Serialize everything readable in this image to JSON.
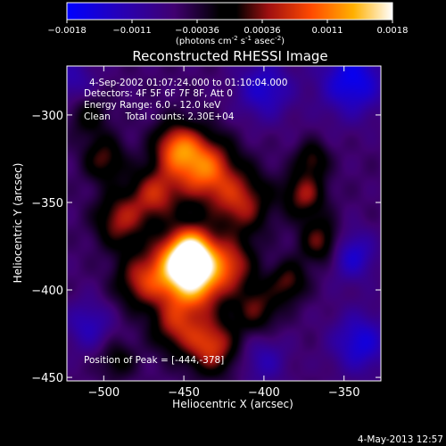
{
  "colorbar": {
    "ticks": [
      "-0.0018",
      "-0.0011",
      "-0.00036",
      "0.00036",
      "0.0011",
      "0.0018"
    ],
    "units_pre": "(photons cm",
    "units_sup1": "-2",
    "units_mid1": " s",
    "units_sup2": "-1",
    "units_mid2": " asec",
    "units_sup3": "-2",
    "units_post": ")"
  },
  "info": {
    "line1": "4-Sep-2002 01:07:24.000 to 01:10:04.000",
    "line2": "Detectors: 4F 5F 6F 7F 8F, Att 0",
    "line3": "Energy Range: 6.0 - 12.0 keV",
    "line4": "Clean     Total counts: 2.30E+04",
    "peak": "Position of Peak = [-444,-378]"
  },
  "footer": {
    "date": "4-May-2013 12:57"
  },
  "chart_data": {
    "type": "heatmap",
    "title": "Reconstructed RHESSI Image",
    "xlabel": "Heliocentric X (arcsec)",
    "ylabel": "Heliocentric Y (arcsec)",
    "xlim": [
      -523,
      -327
    ],
    "ylim": [
      -452,
      -272
    ],
    "xticks": [
      -500,
      -450,
      -400,
      -350
    ],
    "yticks": [
      -300,
      -350,
      -400,
      -450
    ],
    "colorbar_range": [
      -0.0018,
      0.0018
    ],
    "peak_position": [
      -444,
      -378
    ],
    "sources": [
      {
        "x": -445,
        "y": -378,
        "r": 10,
        "amp": 1.0
      },
      {
        "x": -455,
        "y": -388,
        "r": 13,
        "amp": 0.85
      },
      {
        "x": -440,
        "y": -395,
        "r": 12,
        "amp": 0.75
      },
      {
        "x": -438,
        "y": -330,
        "r": 13,
        "amp": 0.85
      },
      {
        "x": -455,
        "y": -318,
        "r": 10,
        "amp": 0.7
      },
      {
        "x": -468,
        "y": -345,
        "r": 11,
        "amp": 0.6
      },
      {
        "x": -490,
        "y": -360,
        "r": 11,
        "amp": 0.55
      },
      {
        "x": -478,
        "y": -395,
        "r": 11,
        "amp": 0.5
      },
      {
        "x": -500,
        "y": -325,
        "r": 9,
        "amp": 0.45
      },
      {
        "x": -415,
        "y": -350,
        "r": 13,
        "amp": 0.6
      },
      {
        "x": -420,
        "y": -385,
        "r": 10,
        "amp": 0.55
      },
      {
        "x": -405,
        "y": -410,
        "r": 10,
        "amp": 0.45
      },
      {
        "x": -433,
        "y": -432,
        "r": 11,
        "amp": 0.7
      },
      {
        "x": -455,
        "y": -420,
        "r": 11,
        "amp": 0.55
      },
      {
        "x": -375,
        "y": -345,
        "r": 9,
        "amp": 0.55
      },
      {
        "x": -365,
        "y": -372,
        "r": 9,
        "amp": 0.5
      },
      {
        "x": -385,
        "y": -395,
        "r": 8,
        "amp": 0.45
      },
      {
        "x": -370,
        "y": -325,
        "r": 7,
        "amp": 0.4
      },
      {
        "x": -510,
        "y": -300,
        "r": 9,
        "amp": 0.3
      },
      {
        "x": -492,
        "y": -440,
        "r": 8,
        "amp": 0.3
      },
      {
        "x": -345,
        "y": -280,
        "r": 14,
        "amp": -0.6
      },
      {
        "x": -400,
        "y": -285,
        "r": 12,
        "amp": -0.45
      },
      {
        "x": -340,
        "y": -430,
        "r": 12,
        "amp": -0.5
      },
      {
        "x": -510,
        "y": -420,
        "r": 10,
        "amp": -0.35
      },
      {
        "x": -345,
        "y": -380,
        "r": 10,
        "amp": -0.45
      },
      {
        "x": -520,
        "y": -280,
        "r": 10,
        "amp": -0.3
      },
      {
        "x": -400,
        "y": -440,
        "r": 10,
        "amp": -0.3
      }
    ]
  }
}
